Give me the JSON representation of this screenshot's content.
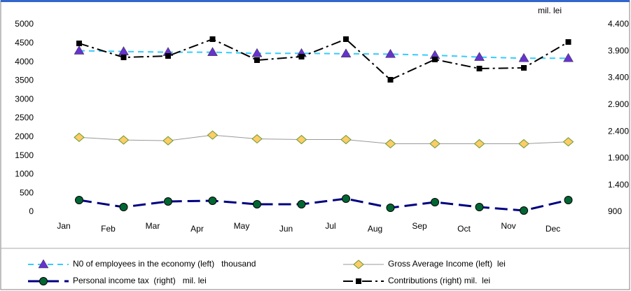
{
  "chart_data": {
    "type": "line",
    "categories": [
      "Jan",
      "Feb",
      "Mar",
      "Apr",
      "May",
      "Jun",
      "Jul",
      "Aug",
      "Sep",
      "Oct",
      "Nov",
      "Dec"
    ],
    "ylim": [
      0,
      5000
    ],
    "yticks": [
      0,
      500,
      1000,
      1500,
      2000,
      2500,
      3000,
      3500,
      4000,
      4500,
      5000
    ],
    "y2label": "mil. lei",
    "y2lim": [
      900,
      4400
    ],
    "y2ticks": [
      900,
      {
        "value": 1400,
        "label": "1.400"
      },
      {
        "value": 1900,
        "label": "1.900"
      },
      {
        "value": 2400,
        "label": "2.400"
      },
      {
        "value": 2900,
        "label": "2.900"
      },
      {
        "value": 3400,
        "label": "3.400"
      },
      {
        "value": 3900,
        "label": "3.900"
      },
      {
        "value": 4400,
        "label": "4.400"
      }
    ],
    "series": [
      {
        "name": "N0 of employees in the economy (left)   thousand",
        "color": "#33ccff",
        "marker": "triangle",
        "marker_color": "#6633cc",
        "dash": "8 6",
        "values": [
          4300,
          4280,
          4260,
          4260,
          4230,
          4230,
          4220,
          4210,
          4180,
          4130,
          4100,
          4100
        ]
      },
      {
        "name": "Gross Average Income (left)  lei",
        "color": "#999999",
        "marker": "diamond",
        "marker_color": "#ffcc66",
        "dash": "none",
        "values": [
          1990,
          1920,
          1900,
          2050,
          1950,
          1930,
          1930,
          1820,
          1820,
          1820,
          1820,
          1870
        ]
      },
      {
        "name": "Personal income tax  (right)   mil. lei",
        "color": "#000080",
        "marker": "circle",
        "marker_color": "#006633",
        "dash": "18 8",
        "axis": "y2",
        "values": [
          1122,
          991,
          1096,
          1109,
          1044,
          1044,
          1148,
          978,
          1083,
          991,
          926,
          1122
        ]
      },
      {
        "name": "Contributions (right) mil.  lei",
        "color": "#000000",
        "marker": "square",
        "marker_color": "#000000",
        "dash": "14 5 3 5",
        "axis": "y2",
        "values": [
          4047,
          3786,
          3812,
          4126,
          3734,
          3799,
          4126,
          3368,
          3747,
          3577,
          3590,
          4073
        ]
      }
    ]
  }
}
